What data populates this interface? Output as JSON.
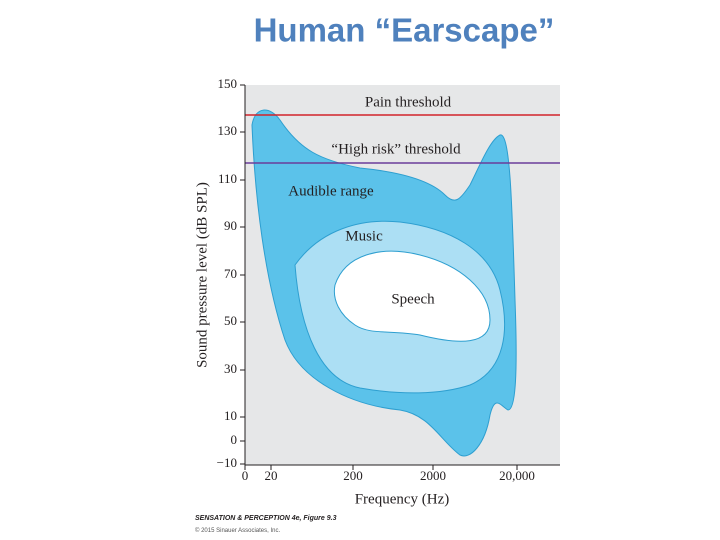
{
  "header": {
    "title": "Human “Earscape”"
  },
  "figure": {
    "y_axis": {
      "label": "Sound pressure level (dB SPL)",
      "ticks": [
        "150",
        "130",
        "110",
        "90",
        "70",
        "50",
        "30",
        "10",
        "0",
        "−10"
      ]
    },
    "x_axis": {
      "label": "Frequency (Hz)",
      "ticks": [
        "0",
        "20",
        "200",
        "2000",
        "20,000"
      ]
    },
    "lines": {
      "pain": "Pain threshold",
      "high_risk": "“High risk” threshold"
    },
    "regions": {
      "audible": "Audible range",
      "music": "Music",
      "speech": "Speech"
    }
  },
  "credit": {
    "line1": "SENSATION & PERCEPTION 4e, Figure 9.3",
    "line2": "© 2015 Sinauer Associates, Inc."
  }
}
